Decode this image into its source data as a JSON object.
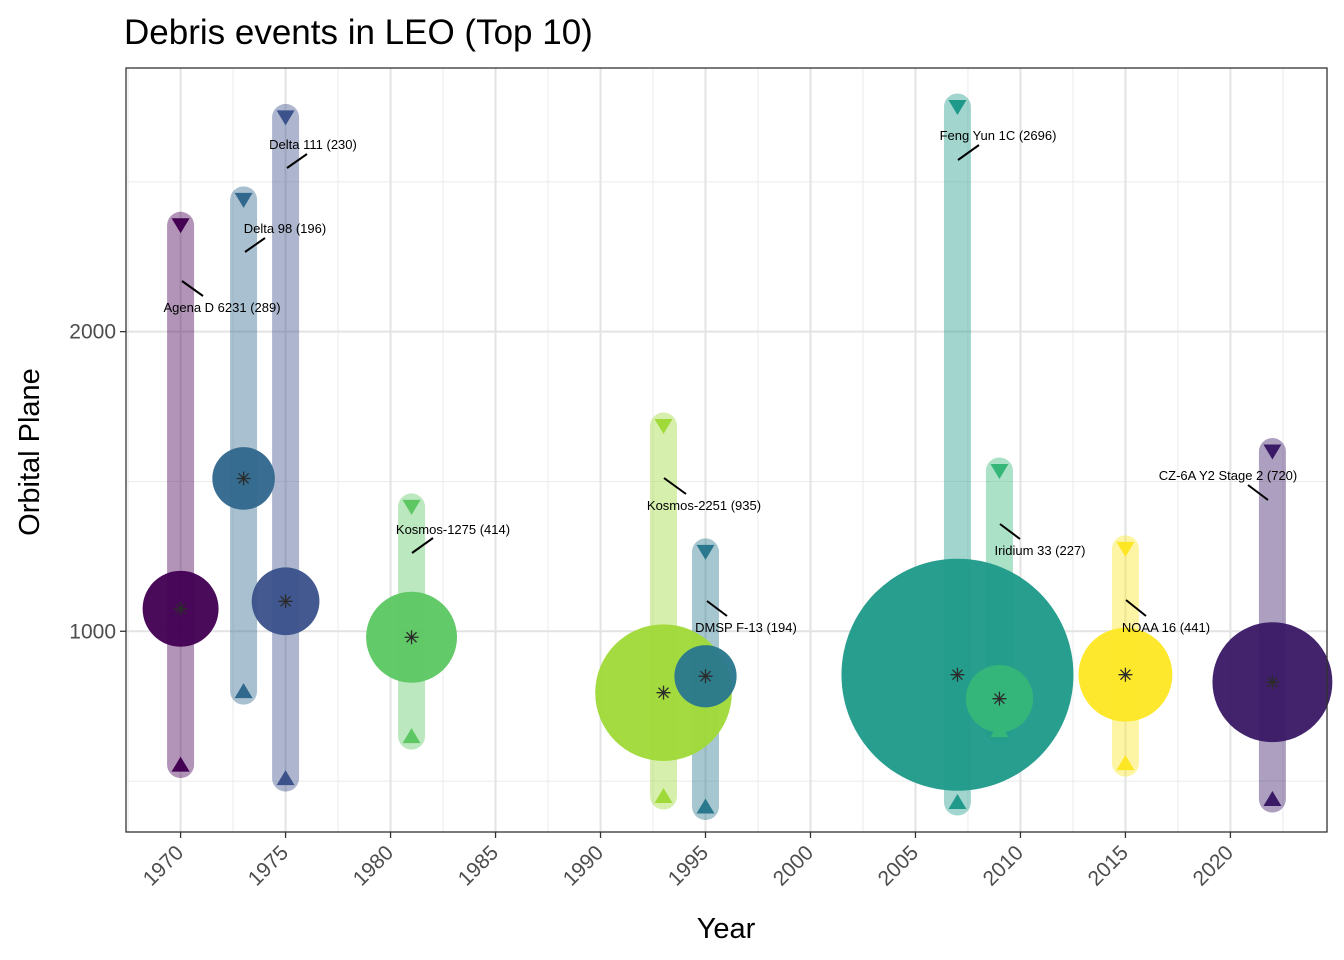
{
  "chart_data": {
    "type": "scatter",
    "title": "Debris events in LEO (Top 10)",
    "xlabel": "Year",
    "ylabel": "Orbital Plane",
    "xlim": [
      1967.4,
      1924.6
    ],
    "ylim": [
      330,
      2880
    ],
    "x_ticks": [
      1970,
      1975,
      1980,
      1985,
      1990,
      1995,
      2000,
      2005,
      2010,
      2015,
      2020
    ],
    "y_ticks": [
      1000,
      2000
    ],
    "grid": true,
    "legend": "none",
    "events": [
      {
        "label": "Agena D 6231 (289)",
        "year": 1970,
        "count": 289,
        "low": 555,
        "high": 2355,
        "mid": 1075,
        "color": "#440154"
      },
      {
        "label": "Delta 98 (196)",
        "year": 1973,
        "count": 196,
        "low": 800,
        "high": 2440,
        "mid": 1510,
        "color": "#31688E"
      },
      {
        "label": "Delta 111 (230)",
        "year": 1975,
        "count": 230,
        "low": 510,
        "high": 2715,
        "mid": 1100,
        "color": "#3B528B"
      },
      {
        "label": "Kosmos-1275 (414)",
        "year": 1981,
        "count": 414,
        "low": 650,
        "high": 1415,
        "mid": 980,
        "color": "#5DC863"
      },
      {
        "label": "Kosmos-2251 (935)",
        "year": 1993,
        "count": 935,
        "low": 450,
        "high": 1685,
        "mid": 795,
        "color": "#A0DA39"
      },
      {
        "label": "DMSP F-13 (194)",
        "year": 1995,
        "count": 194,
        "low": 415,
        "high": 1265,
        "mid": 850,
        "color": "#2A788E"
      },
      {
        "label": "Feng Yun 1C (2696)",
        "year": 2007,
        "count": 2696,
        "low": 430,
        "high": 2750,
        "mid": 855,
        "color": "#1F9A8A"
      },
      {
        "label": "Iridium 33 (227)",
        "year": 2009,
        "count": 227,
        "low": 670,
        "high": 1535,
        "mid": 775,
        "color": "#35B779"
      },
      {
        "label": "NOAA 16 (441)",
        "year": 2015,
        "count": 441,
        "low": 560,
        "high": 1275,
        "mid": 855,
        "color": "#FDE725"
      },
      {
        "label": "CZ-6A Y2 Stage 2 (720)",
        "year": 2022,
        "count": 720,
        "low": 440,
        "high": 1600,
        "mid": 830,
        "color": "#3A1A66"
      }
    ]
  }
}
